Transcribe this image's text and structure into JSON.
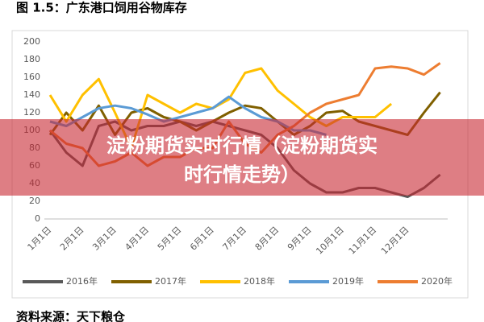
{
  "chart_data": {
    "type": "line",
    "title": "图 1.5：广东港口饲用谷物库存",
    "categories": [
      "1月1日",
      null,
      "2月1日",
      null,
      "3月1日",
      null,
      "4月1日",
      null,
      "5月1日",
      null,
      "6月1日",
      null,
      "7月1日",
      null,
      "8月1日",
      null,
      "9月1日",
      null,
      "10月1日",
      null,
      "11月1日",
      null,
      "12月1日",
      null,
      null
    ],
    "series": [
      {
        "name": "2016年",
        "color": "#595959",
        "values": [
          100,
          75,
          60,
          105,
          110,
          100,
          105,
          105,
          110,
          105,
          110,
          105,
          100,
          95,
          80,
          55,
          40,
          30,
          30,
          35,
          35,
          30,
          25,
          35,
          50
        ]
      },
      {
        "name": "2017年",
        "color": "#806000",
        "values": [
          95,
          120,
          100,
          128,
          95,
          120,
          125,
          115,
          110,
          100,
          110,
          120,
          128,
          125,
          110,
          95,
          105,
          120,
          122,
          110,
          105,
          100,
          95,
          120,
          143
        ]
      },
      {
        "name": "2018年",
        "color": "#ffc000",
        "values": [
          140,
          110,
          140,
          158,
          120,
          80,
          140,
          130,
          120,
          130,
          125,
          135,
          165,
          170,
          145,
          130,
          115,
          105,
          115,
          115,
          115,
          130,
          null,
          null,
          null
        ]
      },
      {
        "name": "2019年",
        "color": "#5b9bd5",
        "values": [
          110,
          105,
          115,
          125,
          128,
          125,
          118,
          110,
          115,
          120,
          125,
          138,
          125,
          115,
          110,
          100,
          100,
          95,
          null,
          null,
          null,
          null,
          null,
          null,
          null
        ]
      },
      {
        "name": "2020年",
        "color": "#ed7d31",
        "values": [
          100,
          85,
          80,
          60,
          65,
          75,
          60,
          70,
          70,
          80,
          80,
          110,
          85,
          75,
          95,
          105,
          120,
          130,
          135,
          140,
          170,
          172,
          170,
          163,
          176
        ]
      }
    ],
    "ylim": [
      0,
      200
    ],
    "yticks": [
      0,
      20,
      40,
      60,
      80,
      100,
      120,
      140,
      160,
      180,
      200
    ],
    "grid": false,
    "legend": "bottom"
  },
  "overlay": {
    "lines": [
      "淀粉期货实时行情（淀粉期货实",
      "时行情走势）"
    ]
  },
  "source": "资料来源：天下粮仓"
}
